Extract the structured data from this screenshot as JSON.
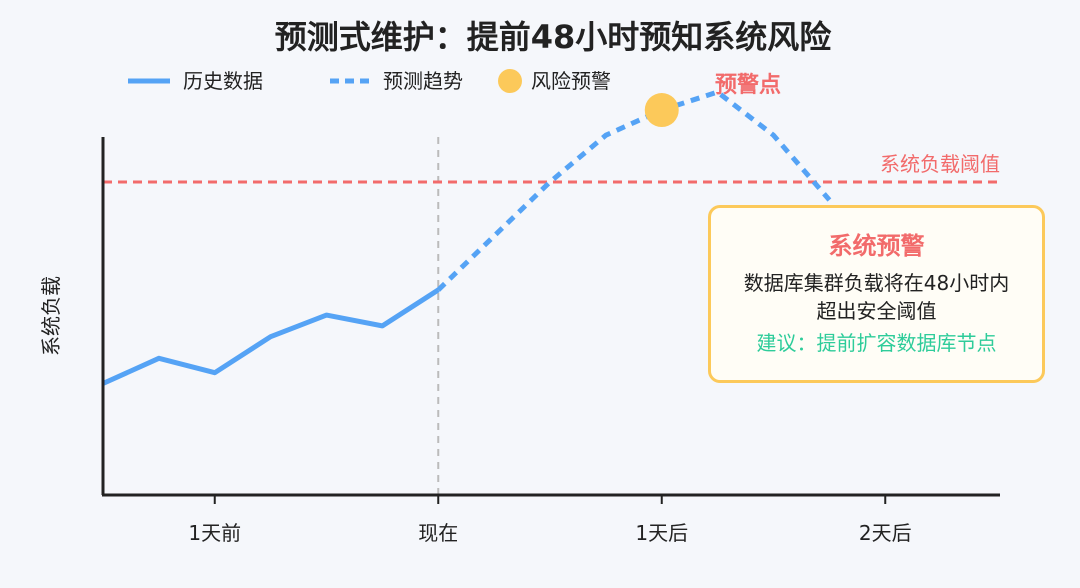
{
  "title": "预测式维护：提前48小时预知系统风险",
  "legend": {
    "history": "历史数据",
    "forecast": "预测趋势",
    "risk": "风险预警"
  },
  "ylabel": "系统负载",
  "threshold_label": "系统负载阈值",
  "warning_point_label": "预警点",
  "alert": {
    "title": "系统预警",
    "line1": "数据库集群负载将在48小时内",
    "line2": "超出安全阈值",
    "suggestion": "建议：提前扩容数据库节点"
  },
  "colors": {
    "history": "#55a3f5",
    "forecast": "#55a3f5",
    "risk": "#fcc95a",
    "threshold": "#f26b6b",
    "axis": "#222222",
    "now_line": "#bbbbbb"
  },
  "chart_data": {
    "type": "line",
    "xlabel": "",
    "ylabel": "系统负载",
    "x_ticks": [
      {
        "x": -1,
        "label": "1天前"
      },
      {
        "x": 0,
        "label": "现在"
      },
      {
        "x": 1,
        "label": "1天后"
      },
      {
        "x": 2,
        "label": "2天后"
      }
    ],
    "xlim": [
      -1.5,
      2.5
    ],
    "ylim": [
      0,
      100
    ],
    "threshold": 87,
    "series": [
      {
        "name": "历史数据",
        "style": "solid",
        "x": [
          -1.5,
          -1.25,
          -1.0,
          -0.75,
          -0.5,
          -0.25,
          0.0
        ],
        "y": [
          31,
          38,
          34,
          44,
          50,
          47,
          57
        ]
      },
      {
        "name": "预测趋势",
        "style": "dashed",
        "x": [
          0.0,
          0.25,
          0.5,
          0.75,
          1.0,
          1.25,
          1.5,
          1.75
        ],
        "y": [
          57,
          72,
          87,
          100,
          107,
          112,
          100,
          82
        ]
      }
    ],
    "risk_point": {
      "x": 1.0,
      "y": 107
    }
  }
}
